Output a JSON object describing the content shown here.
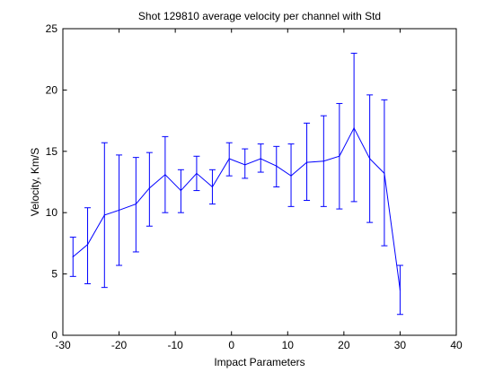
{
  "colors": {
    "series": "#0000ff",
    "axes": "#000000",
    "background": "#ffffff"
  },
  "chart_data": {
    "type": "line",
    "title": "Shot 129810 average velocity per channel with Std",
    "xlabel": "Impact Parameters",
    "ylabel": "Velocity, Km/S",
    "xlim": [
      -30,
      40
    ],
    "ylim": [
      0,
      25
    ],
    "xticks": [
      -30,
      -20,
      -10,
      0,
      10,
      20,
      30,
      40
    ],
    "xtick_labels": [
      "-30",
      "-20",
      "-10",
      "0",
      "10",
      "20",
      "30",
      "40"
    ],
    "yticks": [
      0,
      5,
      10,
      15,
      20,
      25
    ],
    "ytick_labels": [
      "0",
      "5",
      "10",
      "15",
      "20",
      "25"
    ],
    "grid": false,
    "legend": "none",
    "series": [
      {
        "x": [
          -28.2,
          -25.6,
          -22.6,
          -20.0,
          -17.0,
          -14.6,
          -11.8,
          -9.0,
          -6.2,
          -3.4,
          -0.4,
          2.4,
          5.2,
          8.0,
          10.6,
          13.4,
          16.4,
          19.2,
          21.8,
          24.6,
          27.2,
          30.0
        ],
        "y": [
          6.4,
          7.4,
          9.8,
          10.2,
          10.7,
          12.0,
          13.1,
          11.8,
          13.2,
          12.1,
          14.4,
          13.9,
          14.4,
          13.8,
          13.0,
          14.1,
          14.2,
          14.6,
          16.9,
          14.4,
          13.2,
          3.7
        ],
        "err_low": [
          4.8,
          4.2,
          3.9,
          5.7,
          6.8,
          8.9,
          10.0,
          10.0,
          11.8,
          10.7,
          13.0,
          12.8,
          13.3,
          12.1,
          10.5,
          11.0,
          10.5,
          10.3,
          10.9,
          9.2,
          7.3,
          1.7
        ],
        "err_high": [
          8.0,
          10.4,
          15.7,
          14.7,
          14.5,
          14.9,
          16.2,
          13.5,
          14.6,
          13.5,
          15.7,
          15.2,
          15.6,
          15.4,
          15.6,
          17.3,
          17.9,
          18.9,
          23.0,
          19.6,
          19.2,
          5.7
        ]
      }
    ]
  }
}
